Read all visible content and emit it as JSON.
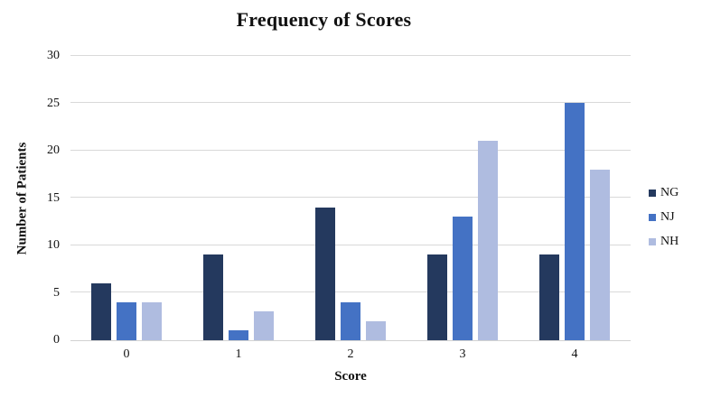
{
  "chart_data": {
    "type": "bar",
    "title": "Frequency of Scores",
    "xlabel": "Score",
    "ylabel": "Number of Patients",
    "categories": [
      "0",
      "1",
      "2",
      "3",
      "4"
    ],
    "series": [
      {
        "name": "NG",
        "color": "#24395E",
        "values": [
          6,
          9,
          14,
          9,
          9
        ]
      },
      {
        "name": "NJ",
        "color": "#4472C4",
        "values": [
          4,
          1,
          4,
          13,
          25
        ]
      },
      {
        "name": "NH",
        "color": "#AFBCE0",
        "values": [
          4,
          3,
          2,
          21,
          18
        ]
      }
    ],
    "ylim": [
      0,
      30
    ],
    "yticks": [
      0,
      5,
      10,
      15,
      20,
      25,
      30
    ],
    "grid": "horizontal",
    "gridline_color": "#d9d9d9",
    "legend_position": "right"
  }
}
